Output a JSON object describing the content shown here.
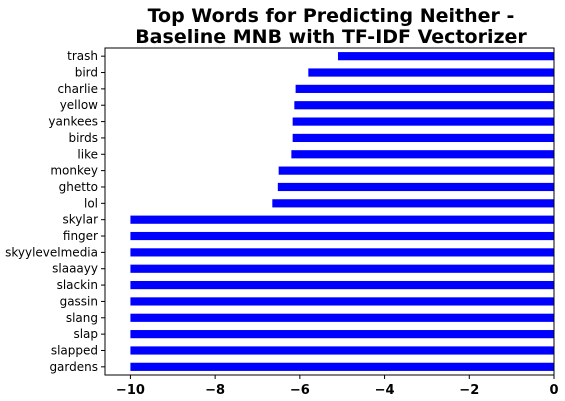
{
  "chart_data": {
    "type": "bar",
    "orientation": "horizontal",
    "title": [
      "Top Words for Predicting Neither -",
      "Baseline MNB with TF-IDF Vectorizer"
    ],
    "xlabel": "",
    "ylabel": "",
    "xlim": [
      -10.6,
      0
    ],
    "xticks": [
      -10,
      -8,
      -6,
      -4,
      -2,
      0
    ],
    "xtick_labels": [
      "−10",
      "−8",
      "−6",
      "−4",
      "−2",
      "0"
    ],
    "bar_color": "#0000ff",
    "grid": false,
    "categories": [
      "trash",
      "bird",
      "charlie",
      "yellow",
      "yankees",
      "birds",
      "like",
      "monkey",
      "ghetto",
      "lol",
      "skylar",
      "finger",
      "skyylevelmedia",
      "slaaayy",
      "slackin",
      "gassin",
      "slang",
      "slap",
      "slapped",
      "gardens"
    ],
    "values": [
      -5.1,
      -5.8,
      -6.1,
      -6.13,
      -6.17,
      -6.17,
      -6.2,
      -6.5,
      -6.52,
      -6.65,
      -10.0,
      -10.0,
      -10.0,
      -10.0,
      -10.0,
      -10.0,
      -10.0,
      -10.0,
      -10.0,
      -10.0
    ]
  }
}
